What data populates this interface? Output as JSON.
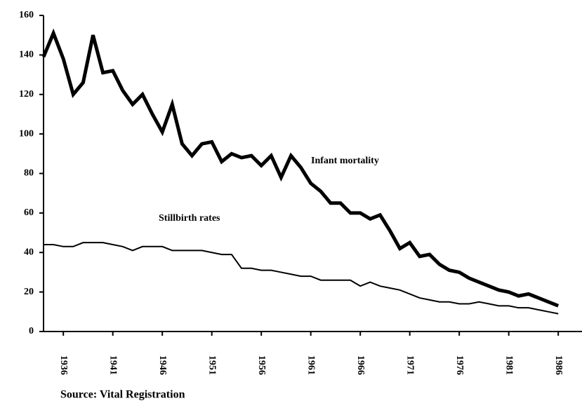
{
  "chart_data": {
    "type": "line",
    "x": [
      1934,
      1935,
      1936,
      1937,
      1938,
      1939,
      1940,
      1941,
      1942,
      1943,
      1944,
      1945,
      1946,
      1947,
      1948,
      1949,
      1950,
      1951,
      1952,
      1953,
      1954,
      1955,
      1956,
      1957,
      1958,
      1959,
      1960,
      1961,
      1962,
      1963,
      1964,
      1965,
      1966,
      1967,
      1968,
      1969,
      1970,
      1971,
      1972,
      1973,
      1974,
      1975,
      1976,
      1977,
      1978,
      1979,
      1980,
      1981,
      1982,
      1983,
      1984,
      1985,
      1986
    ],
    "series": [
      {
        "name": "Infant mortality",
        "color": "#000000",
        "width": 5,
        "values": [
          139,
          151,
          138,
          120,
          126,
          150,
          131,
          132,
          122,
          115,
          120,
          110,
          101,
          115,
          95,
          89,
          95,
          96,
          86,
          90,
          88,
          89,
          84,
          89,
          78,
          89,
          83,
          75,
          71,
          65,
          65,
          60,
          60,
          57,
          59,
          51,
          42,
          45,
          38,
          39,
          34,
          31,
          30,
          27,
          25,
          23,
          21,
          20,
          18,
          19,
          17,
          15,
          13
        ]
      },
      {
        "name": "Stillbirth rates",
        "color": "#000000",
        "width": 2,
        "values": [
          44,
          44,
          43,
          43,
          45,
          45,
          45,
          44,
          43,
          41,
          43,
          43,
          43,
          41,
          41,
          41,
          41,
          40,
          39,
          39,
          32,
          32,
          31,
          31,
          30,
          29,
          28,
          28,
          26,
          26,
          26,
          26,
          23,
          25,
          23,
          22,
          21,
          19,
          17,
          16,
          15,
          15,
          14,
          14,
          15,
          14,
          13,
          13,
          12,
          12,
          11,
          10,
          9
        ]
      }
    ],
    "xlim": [
      1934,
      1988.4
    ],
    "xticks": [
      1936,
      1941,
      1946,
      1951,
      1956,
      1961,
      1966,
      1971,
      1976,
      1981,
      1986
    ],
    "ylim": [
      0,
      160
    ],
    "yticks": [
      0,
      20,
      40,
      60,
      80,
      100,
      120,
      140,
      160
    ],
    "note": "Source: Vital Registration"
  }
}
